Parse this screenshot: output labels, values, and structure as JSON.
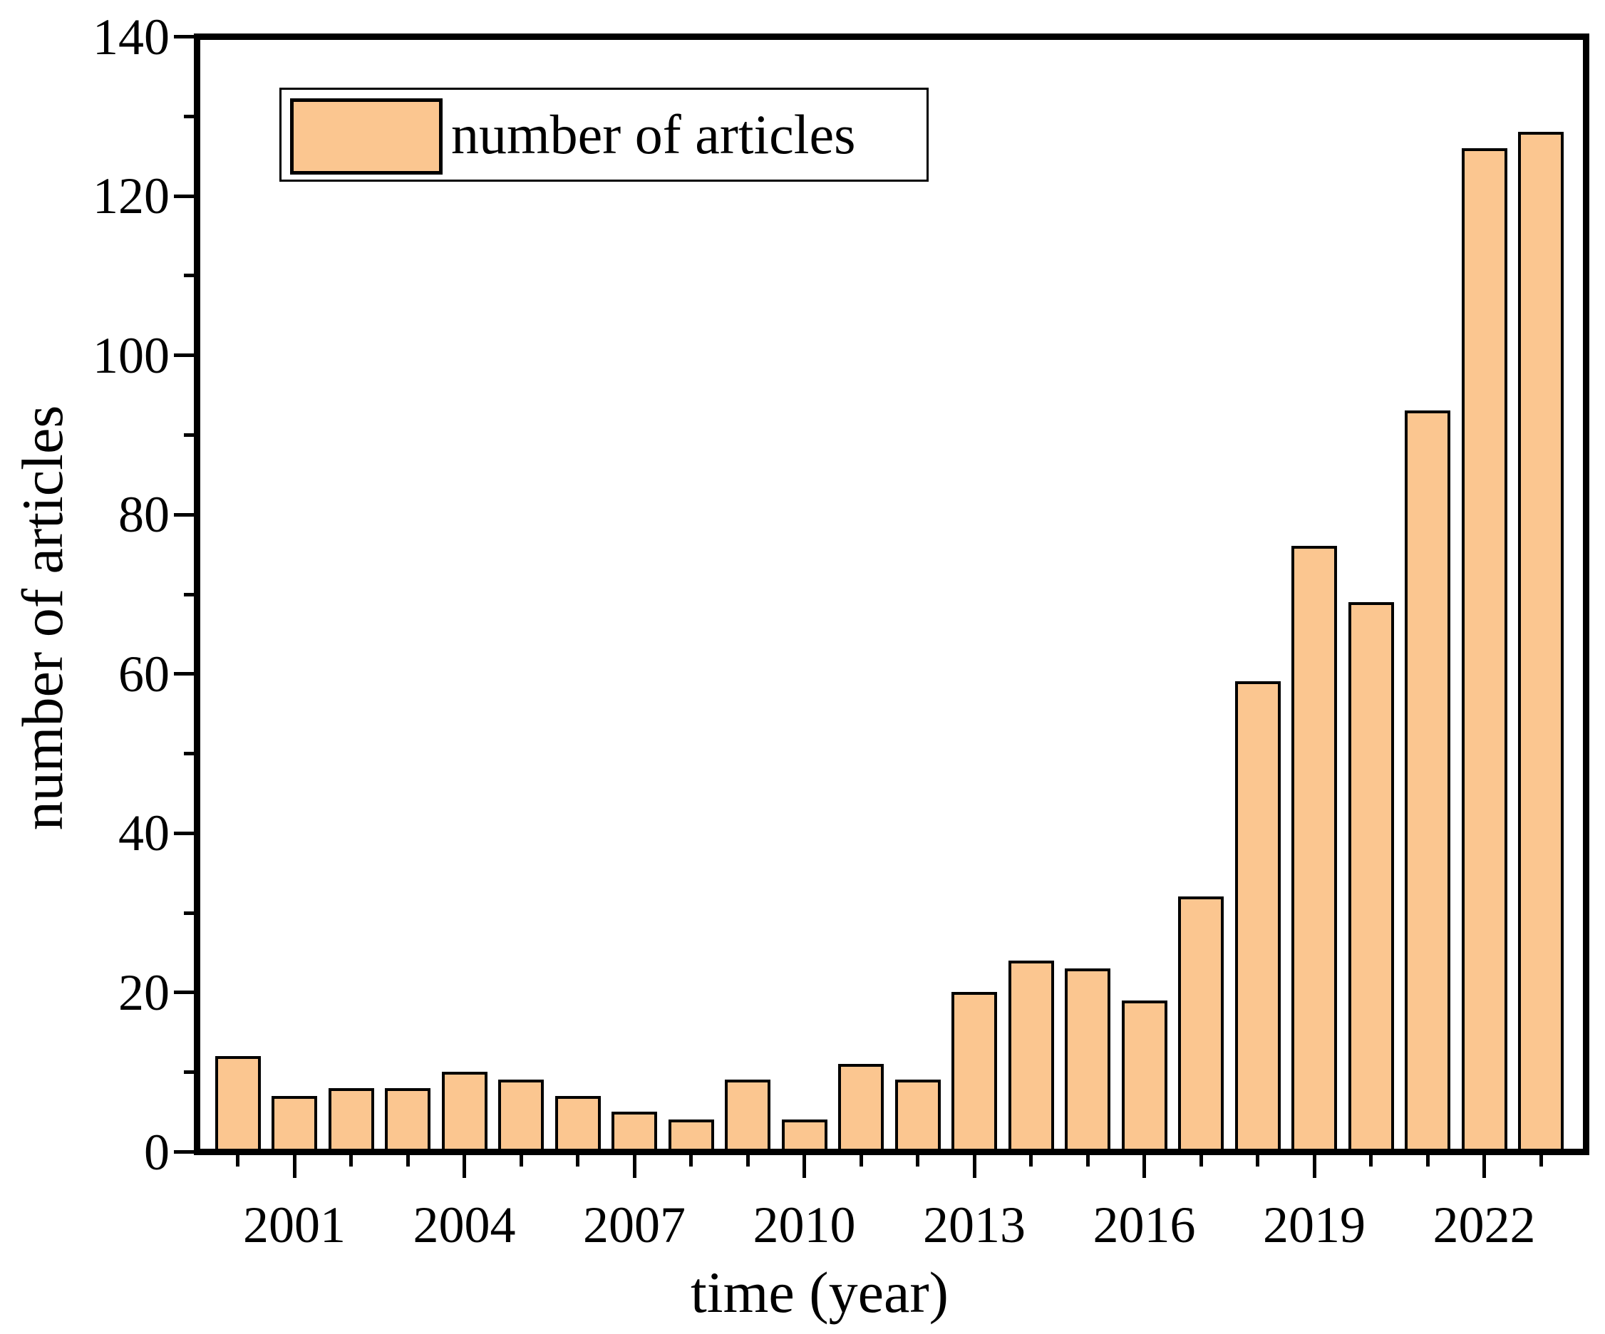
{
  "figure": {
    "background": "#ffffff"
  },
  "chart_data": {
    "type": "bar",
    "title": "",
    "xlabel": "time (year)",
    "ylabel": "number of articles",
    "legend": {
      "label": "number of articles",
      "position": "top-left",
      "swatch_color": "#FBC690",
      "swatch_border_color": "#000000"
    },
    "x": [
      2000,
      2001,
      2002,
      2003,
      2004,
      2005,
      2006,
      2007,
      2008,
      2009,
      2010,
      2011,
      2012,
      2013,
      2014,
      2015,
      2016,
      2017,
      2018,
      2019,
      2020,
      2021,
      2022,
      2023
    ],
    "values": [
      12,
      7,
      8,
      8,
      10,
      9,
      7,
      5,
      4,
      9,
      4,
      11,
      9,
      20,
      24,
      23,
      19,
      32,
      59,
      76,
      69,
      93,
      126,
      128
    ],
    "series_name": "number of articles",
    "ylim": [
      0,
      140
    ],
    "yticks_labeled": [
      0,
      20,
      40,
      60,
      80,
      100,
      120,
      140
    ],
    "yticks_minor": [
      10,
      30,
      50,
      70,
      90,
      110,
      130
    ],
    "xticks_labeled": [
      2001,
      2004,
      2007,
      2010,
      2013,
      2016,
      2019,
      2022
    ],
    "bar_color": "#FBC690",
    "bar_edge_color": "#000000",
    "axis_color": "#000000",
    "grid": false,
    "legend_border": true
  }
}
